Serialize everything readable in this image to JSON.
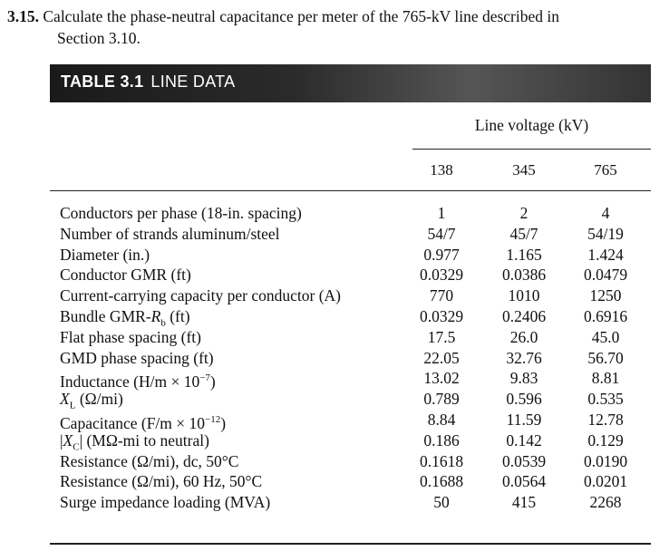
{
  "problem": {
    "number": "3.15.",
    "line1": "Calculate the phase-neutral capacitance per meter of the 765-kV line described in",
    "line2": "Section 3.10."
  },
  "table": {
    "label": "TABLE 3.1",
    "title": "LINE DATA",
    "group_header": "Line voltage (kV)",
    "columns": [
      "138",
      "345",
      "765"
    ],
    "rows": [
      {
        "label": {
          "pre": "Conductors per phase (18-in. spacing)"
        },
        "values": [
          "1",
          "2",
          "4"
        ]
      },
      {
        "label": {
          "pre": "Number of strands aluminum/steel"
        },
        "values": [
          "54/7",
          "45/7",
          "54/19"
        ]
      },
      {
        "label": {
          "pre": "Diameter (in.)"
        },
        "values": [
          "0.977",
          "1.165",
          "1.424"
        ]
      },
      {
        "label": {
          "pre": "Conductor GMR (ft)"
        },
        "values": [
          "0.0329",
          "0.0386",
          "0.0479"
        ]
      },
      {
        "label": {
          "pre": "Current-carrying capacity per conductor (A)"
        },
        "values": [
          "770",
          "1010",
          "1250"
        ]
      },
      {
        "label": {
          "pre": "Bundle GMR-",
          "sym": "R",
          "sub": "b",
          "post": " (ft)"
        },
        "values": [
          "0.0329",
          "0.2406",
          "0.6916"
        ]
      },
      {
        "label": {
          "pre": "Flat phase spacing (ft)"
        },
        "values": [
          "17.5",
          "26.0",
          "45.0"
        ]
      },
      {
        "label": {
          "pre": "GMD phase spacing (ft)"
        },
        "values": [
          "22.05",
          "32.76",
          "56.70"
        ]
      },
      {
        "label": {
          "pre": "Inductance (H/m × 10",
          "sup": "−7",
          "post": ")"
        },
        "values": [
          "13.02",
          "9.83",
          "8.81"
        ]
      },
      {
        "label": {
          "sym": "X",
          "sub": "L",
          "post": " (Ω/mi)"
        },
        "values": [
          "0.789",
          "0.596",
          "0.535"
        ]
      },
      {
        "label": {
          "pre": "Capacitance (F/m × 10",
          "sup": "−12",
          "post": ")"
        },
        "values": [
          "8.84",
          "11.59",
          "12.78"
        ]
      },
      {
        "label": {
          "pre": "|",
          "sym": "X",
          "sub": "C",
          "post": "| (MΩ-mi to neutral)"
        },
        "values": [
          "0.186",
          "0.142",
          "0.129"
        ]
      },
      {
        "label": {
          "pre": "Resistance (Ω/mi), dc, 50°C"
        },
        "values": [
          "0.1618",
          "0.0539",
          "0.0190"
        ]
      },
      {
        "label": {
          "pre": "Resistance (Ω/mi), 60 Hz, 50°C"
        },
        "values": [
          "0.1688",
          "0.0564",
          "0.0201"
        ]
      },
      {
        "label": {
          "pre": "Surge impedance loading (MVA)"
        },
        "values": [
          "50",
          "415",
          "2268"
        ]
      }
    ]
  }
}
